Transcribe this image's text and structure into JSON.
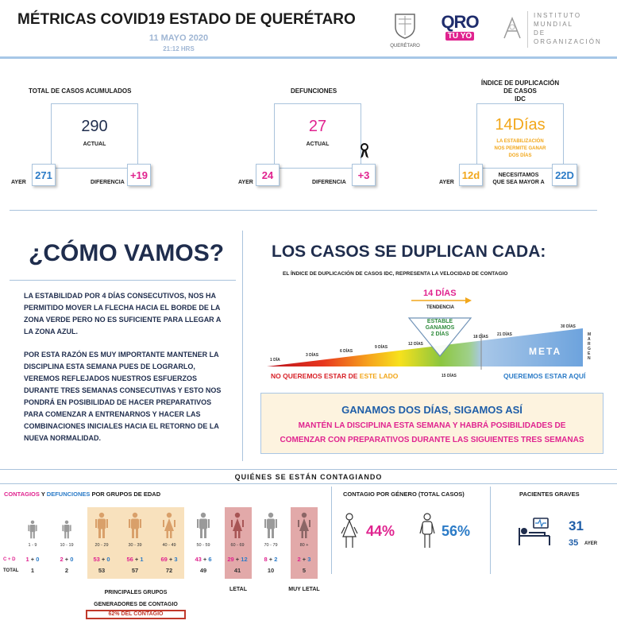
{
  "header": {
    "title": "MÉTRICAS COVID19 ESTADO DE QUERÉTARO",
    "date": "11 MAYO 2020",
    "time": "21:12 HRS",
    "logo_queretaro": "QUERÉTARO",
    "logo_oro_top": "QRO",
    "logo_oro_bottom": "TÚ YO",
    "logo_imo_line1": "INSTITUTO",
    "logo_imo_line2": "MUNDIAL",
    "logo_imo_line3": "DE",
    "logo_imo_line4": "ORGANIZACIÓN"
  },
  "metrics": {
    "total": {
      "title": "TOTAL DE CASOS ACUMULADOS",
      "value": "290",
      "caption": "ACTUAL",
      "yesterday_label": "AYER",
      "yesterday": "271",
      "diff_label": "DIFERENCIA",
      "diff": "+19"
    },
    "deaths": {
      "title": "DEFUNCIONES",
      "value": "27",
      "caption": "ACTUAL",
      "yesterday_label": "AYER",
      "yesterday": "24",
      "diff_label": "DIFERENCIA",
      "diff": "+3"
    },
    "idc": {
      "title_line1": "ÍNDICE DE DUPLICACIÓN",
      "title_line2": "DE CASOS",
      "title_line3": "IDC",
      "value": "14Días",
      "caption_line1": "LA ESTABILIZACIÓN",
      "caption_line2": "NOS PERMITE GANAR",
      "caption_line3": "DOS DÍAS",
      "yesterday_label": "AYER",
      "yesterday": "12d",
      "need_line1": "NECESITAMOS",
      "need_line2": "QUE SEA MAYOR A",
      "need": "22D"
    }
  },
  "como_vamos": {
    "title": "¿CÓMO VAMOS?",
    "para1": "LA ESTABILIDAD POR 4 DÍAS CONSECUTIVOS, NOS HA PERMITIDO MOVER LA FLECHA HACIA EL BORDE DE LA ZONA VERDE PERO NO ES SUFICIENTE PARA LLEGAR A LA ZONA AZUL.",
    "para2": "POR ESTA RAZÓN ES MUY IMPORTANTE MANTENER LA DISCIPLINA ESTA SEMANA PUES DE LOGRARLO, VEREMOS REFLEJADOS NUESTROS ESFUERZOS DURANTE TRES SEMANAS CONSECUTIVAS Y ESTO NOS PONDRÁ EN POSIBILIDAD DE HACER PREPARATIVOS PARA COMENZAR A ENTRENARNOS Y HACER LAS COMBINACIONES INICIALES HACIA EL RETORNO DE LA NUEVA NORMALIDAD."
  },
  "duplican": {
    "title": "LOS CASOS SE DUPLICAN CADA:",
    "subtitle": "EL ÍNDICE DE DUPLICACIÓN DE CASOS IDC, REPRESENTA LA VELOCIDAD DE CONTAGIO",
    "current": "14 DÍAS",
    "trend": "TENDENCIA",
    "stable_line1": "ESTABLE",
    "stable_line2": "GANAMOS",
    "stable_line3": "2 DÍAS",
    "ticks": [
      "1 DÍA",
      "3 DÍAS",
      "6 DÍAS",
      "9 DÍAS",
      "12 DÍAS",
      "15 DÍAS",
      "18 DÍAS",
      "21 DÍAS",
      "30 DÍAS"
    ],
    "meta": "META",
    "margen": "MARGEN",
    "no_queremos_a": "NO QUEREMOS ESTAR DE ",
    "no_queremos_b": "ESTE LADO",
    "queremos": "QUEREMOS ESTAR AQUÍ"
  },
  "ganamos": {
    "title": "GANAMOS DOS DÍAS, SIGAMOS ASÍ",
    "line1": "MANTÉN LA DISCIPLINA ESTA SEMANA Y HABRÁ POSIBILIDADES DE",
    "line2": "COMENZAR CON PREPARATIVOS DURANTE LAS SIGUIENTES TRES SEMANAS"
  },
  "quienes": {
    "title": "QUIÉNES SE ESTÁN CONTAGIANDO",
    "age_title_a": "CONTAGIOS",
    "age_title_b": " Y ",
    "age_title_c": "DEFUNCIONES",
    "age_title_d": " POR GRUPOS DE EDAD",
    "row_cd_label": "C + D",
    "row_total_label": "TOTAL",
    "groups": [
      {
        "label": "1 - 9",
        "c": "1",
        "plus": " + ",
        "d": "0",
        "total": "1"
      },
      {
        "label": "10 - 19",
        "c": "2",
        "plus": " + ",
        "d": "0",
        "total": "2"
      },
      {
        "label": "20 - 29",
        "c": "53",
        "plus": " + ",
        "d": "0",
        "total": "53"
      },
      {
        "label": "30 - 39",
        "c": "56",
        "plus": " + ",
        "d": "1",
        "total": "57"
      },
      {
        "label": "40 - 49",
        "c": "69",
        "plus": " + ",
        "d": "3",
        "total": "72"
      },
      {
        "label": "50 - 59",
        "c": "43",
        "plus": " + ",
        "d": "6",
        "total": "49"
      },
      {
        "label": "60 - 69",
        "c": "29",
        "plus": " + ",
        "d": "12",
        "total": "41"
      },
      {
        "label": "70 - 79",
        "c": "8",
        "plus": " + ",
        "d": "2",
        "total": "10"
      },
      {
        "label": "80 +",
        "c": "2",
        "plus": " + ",
        "d": "3",
        "total": "5"
      }
    ],
    "principales_line1": "PRINCIPALES GRUPOS",
    "principales_line2": "GENERADORES DE CONTAGIO",
    "principales_pct": "62% DEL CONTAGIO",
    "letal": "LETAL",
    "muy_letal": "MUY LETAL",
    "gender_title": "CONTAGIO POR GÉNERO (TOTAL CASOS)",
    "female_pct": "44%",
    "male_pct": "56%",
    "graves_title": "PACIENTES GRAVES",
    "graves_value": "31",
    "graves_yesterday": "35",
    "graves_yesterday_label": "AYER"
  },
  "colors": {
    "navy": "#1f2d4d",
    "pink": "#e0238f",
    "blue": "#2b7bc7",
    "orange": "#f2a71b",
    "red": "#d71f26",
    "beige": "#f8e1bd",
    "rose": "#e2a9a9"
  }
}
